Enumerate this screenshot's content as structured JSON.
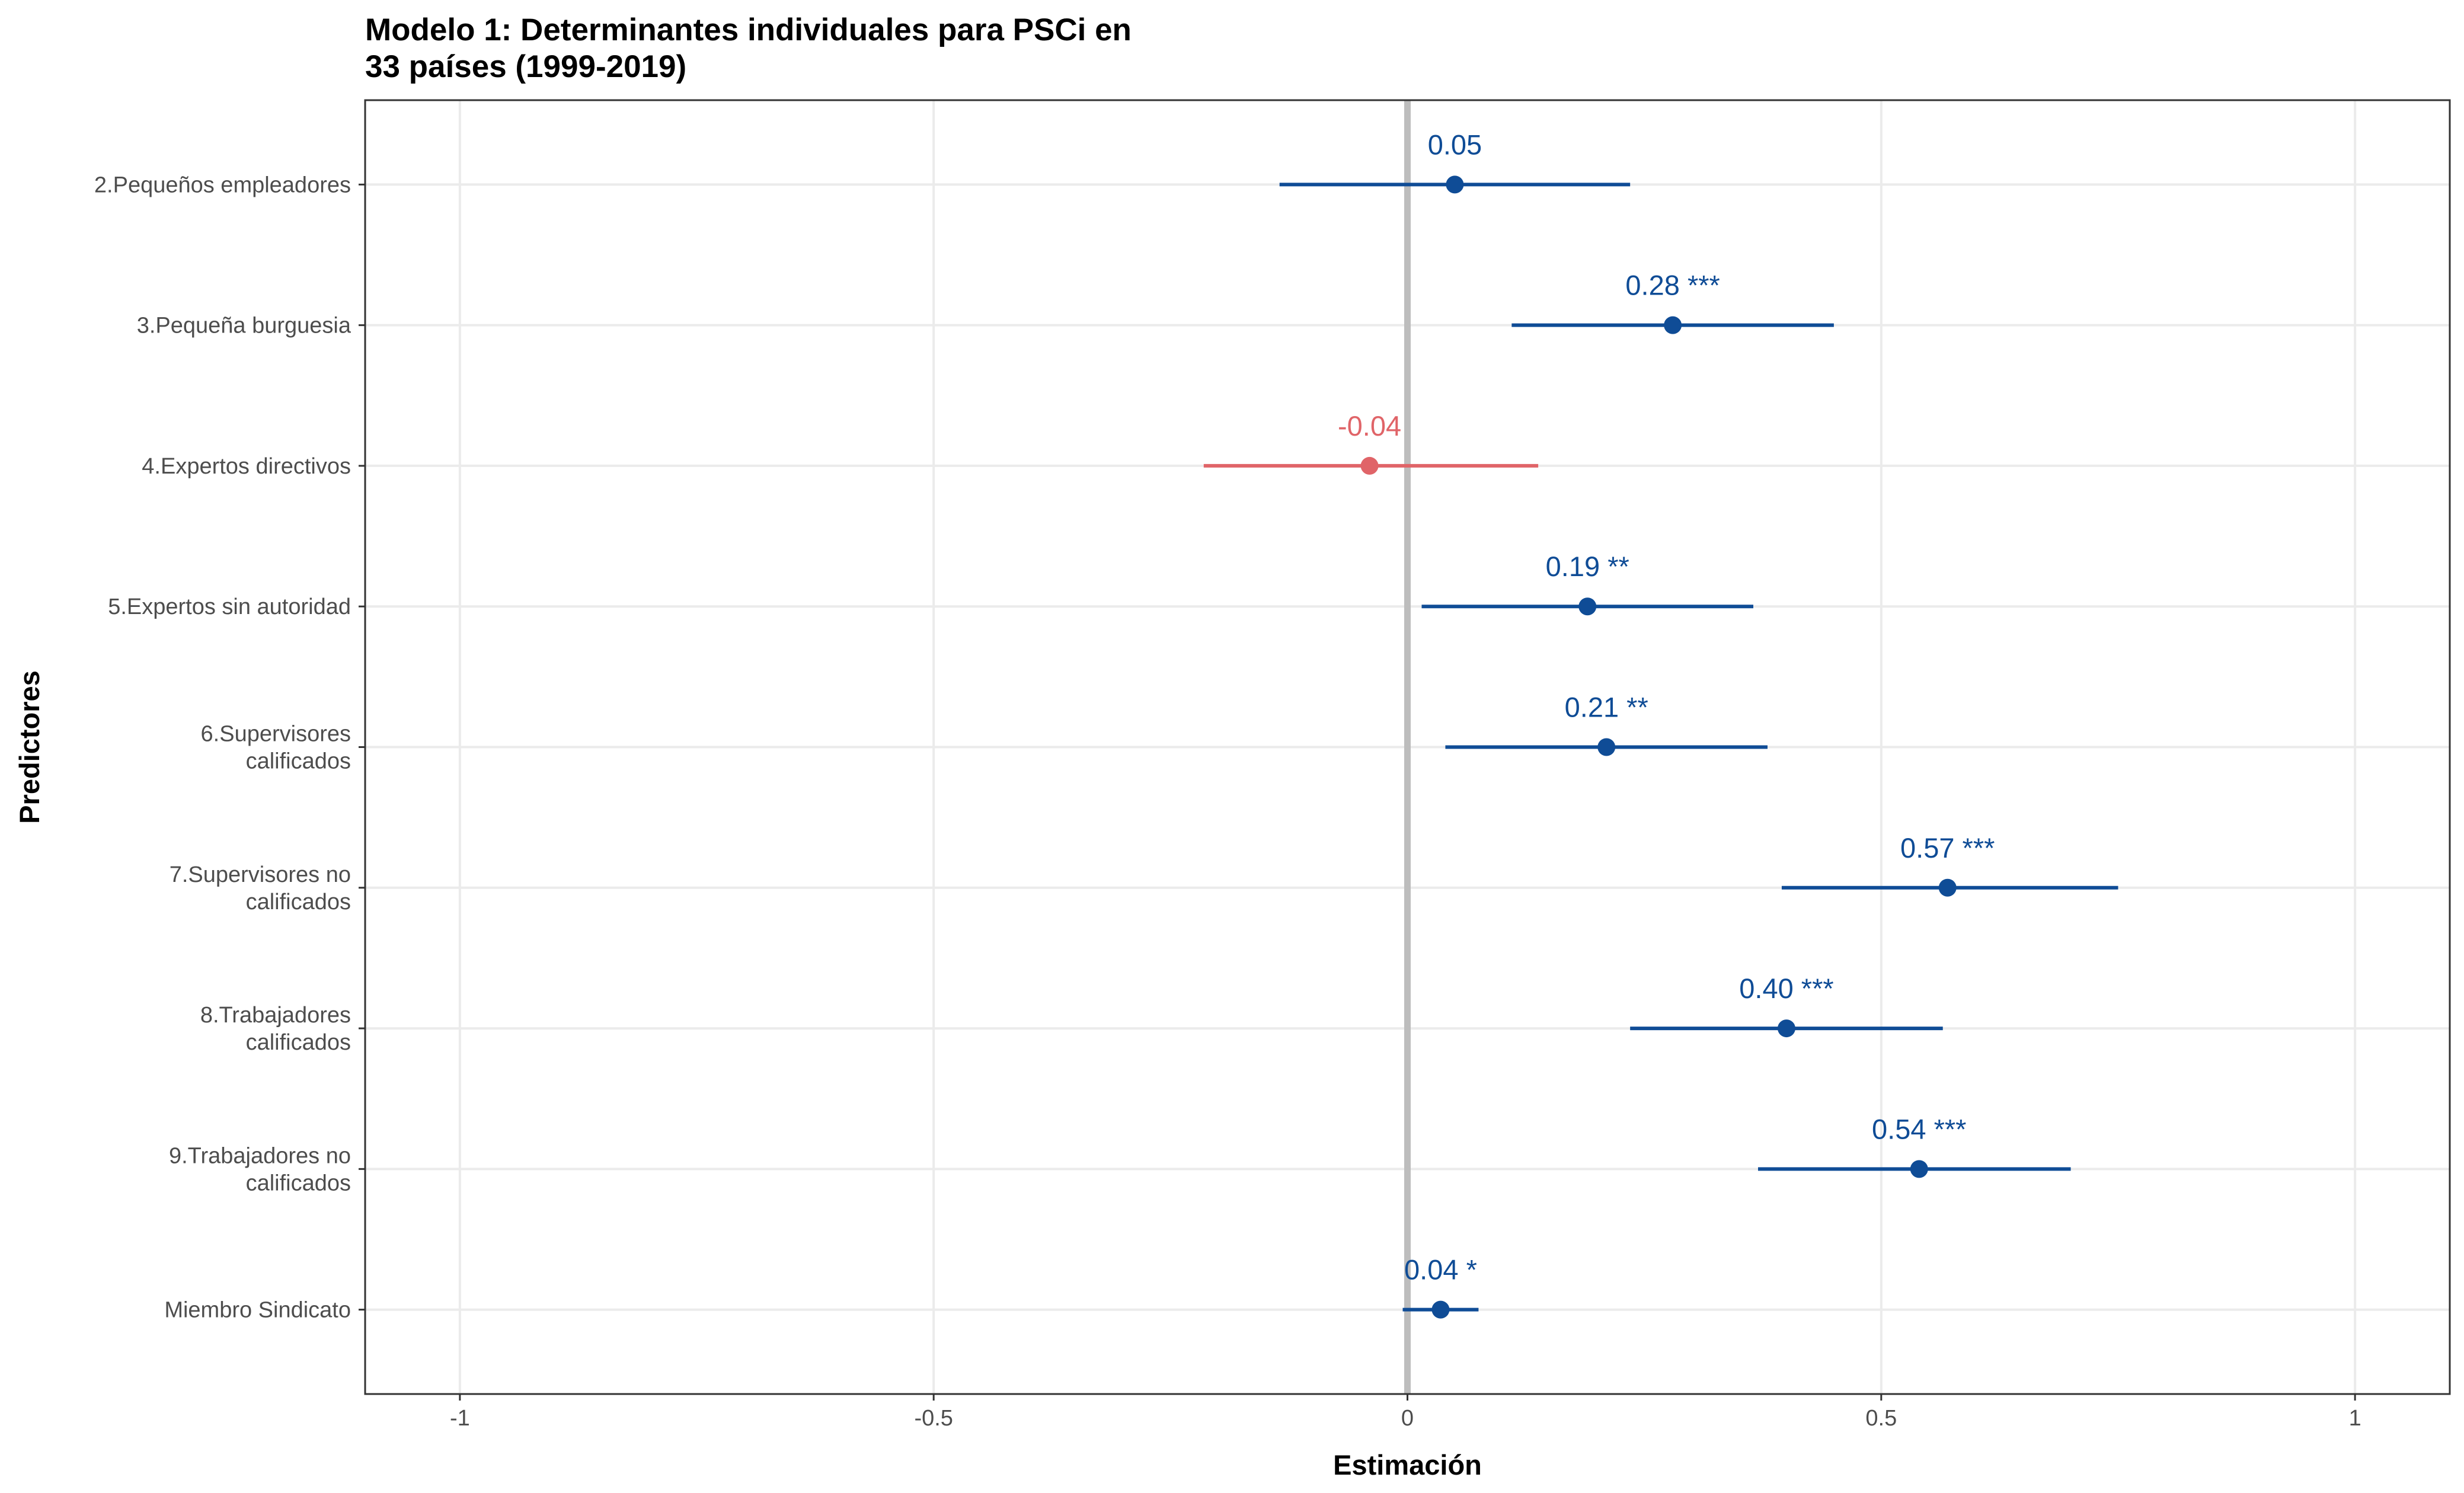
{
  "chart_data": {
    "type": "scatter",
    "subtype": "coefficient-plot",
    "title_lines": [
      "Modelo 1: Determinantes individuales para PSCi en",
      "33 países (1999-2019)"
    ],
    "xlabel": "Estimación",
    "ylabel": "Predictores",
    "xlim": [
      -1.1,
      1.1
    ],
    "x_ticks": [
      -1,
      -0.5,
      0,
      0.5,
      1
    ],
    "x_tick_labels": [
      "-1",
      "-0.5",
      "0",
      "0.5",
      "1"
    ],
    "grid": true,
    "reference_line_x": 0,
    "colors": {
      "positive": "#0f4c96",
      "negative": "#e06468",
      "reference_line": "#bdbdbd",
      "grid": "#ebebeb",
      "panel_border": "#333333"
    },
    "predictors": [
      {
        "label": [
          "2.Pequeños empleadores"
        ],
        "estimate": 0.05,
        "ci_low": -0.135,
        "ci_high": 0.235,
        "value_label": "0.05",
        "sign": "positive"
      },
      {
        "label": [
          "3.Pequeña burguesia"
        ],
        "estimate": 0.28,
        "ci_low": 0.11,
        "ci_high": 0.45,
        "value_label": "0.28 ***",
        "sign": "positive"
      },
      {
        "label": [
          "4.Expertos directivos"
        ],
        "estimate": -0.04,
        "ci_low": -0.215,
        "ci_high": 0.138,
        "value_label": "-0.04",
        "sign": "negative"
      },
      {
        "label": [
          "5.Expertos sin autoridad"
        ],
        "estimate": 0.19,
        "ci_low": 0.015,
        "ci_high": 0.365,
        "value_label": "0.19 **",
        "sign": "positive"
      },
      {
        "label": [
          "6.Supervisores",
          "calificados"
        ],
        "estimate": 0.21,
        "ci_low": 0.04,
        "ci_high": 0.38,
        "value_label": "0.21 **",
        "sign": "positive"
      },
      {
        "label": [
          "7.Supervisores no",
          "calificados"
        ],
        "estimate": 0.57,
        "ci_low": 0.395,
        "ci_high": 0.75,
        "value_label": "0.57 ***",
        "sign": "positive"
      },
      {
        "label": [
          "8.Trabajadores",
          "calificados"
        ],
        "estimate": 0.4,
        "ci_low": 0.235,
        "ci_high": 0.565,
        "value_label": "0.40 ***",
        "sign": "positive"
      },
      {
        "label": [
          "9.Trabajadores no",
          "calificados"
        ],
        "estimate": 0.54,
        "ci_low": 0.37,
        "ci_high": 0.7,
        "value_label": "0.54 ***",
        "sign": "positive"
      },
      {
        "label": [
          "Miembro Sindicato"
        ],
        "estimate": 0.035,
        "ci_low": -0.005,
        "ci_high": 0.075,
        "value_label": "0.04 *",
        "sign": "positive"
      }
    ]
  }
}
